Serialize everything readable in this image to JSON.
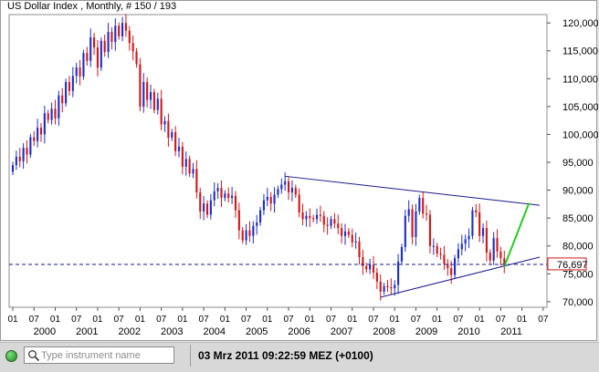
{
  "window": {
    "title": "US Dollar Index , Monthly, # 150 / 193"
  },
  "status_bar": {
    "search_placeholder": "Type instrument name",
    "datetime": "03 Mrz 2011 09:22:59  MEZ (+0100)",
    "connection_color": "#2fae2f"
  },
  "colors": {
    "up_candle": "#1c2fc8",
    "down_candle": "#d01818",
    "trendline": "#1a1a8a",
    "projection": "#22cc22",
    "price_box_border": "#d01818"
  },
  "chart_data": {
    "type": "candlestick",
    "title": "US Dollar Index , Monthly, # 150 / 193",
    "frequency": "monthly",
    "y_axis_side": "right",
    "ylim": [
      69,
      121.5
    ],
    "y_ticks": [
      {
        "value": 120,
        "label": "120,000"
      },
      {
        "value": 115,
        "label": "115,000"
      },
      {
        "value": 110,
        "label": "110,000"
      },
      {
        "value": 105,
        "label": "105,000"
      },
      {
        "value": 100,
        "label": "100,000"
      },
      {
        "value": 95,
        "label": "95,000"
      },
      {
        "value": 90,
        "label": "90,000"
      },
      {
        "value": 85,
        "label": "85,000"
      },
      {
        "value": 80,
        "label": "80,000"
      },
      {
        "value": 75,
        "label": "75,000"
      },
      {
        "value": 70,
        "label": "70,000"
      }
    ],
    "x_month_ticks": [
      "01",
      "07",
      "01",
      "07",
      "01",
      "07",
      "01",
      "07",
      "01",
      "07",
      "01",
      "07",
      "01",
      "07",
      "01",
      "07",
      "01",
      "07",
      "01",
      "07",
      "01",
      "07",
      "01",
      "07",
      "01",
      "07"
    ],
    "x_year_labels": [
      "2000",
      "2001",
      "2002",
      "2003",
      "2004",
      "2005",
      "2006",
      "2007",
      "2008",
      "2009",
      "2010",
      "2011"
    ],
    "x_range": [
      "1999-07",
      "2011-12"
    ],
    "last_price": {
      "value": 76.697,
      "label": "76,697"
    },
    "closes": [
      [
        "1999-07",
        94.5
      ],
      [
        "1999-08",
        96.0
      ],
      [
        "1999-09",
        95.2
      ],
      [
        "1999-10",
        97.6
      ],
      [
        "1999-11",
        96.4
      ],
      [
        "1999-12",
        99.5
      ],
      [
        "2000-01",
        98.8
      ],
      [
        "2000-02",
        101.2
      ],
      [
        "2000-03",
        100.0
      ],
      [
        "2000-04",
        103.8
      ],
      [
        "2000-05",
        102.6
      ],
      [
        "2000-06",
        104.6
      ],
      [
        "2000-07",
        102.9
      ],
      [
        "2000-08",
        107.0
      ],
      [
        "2000-09",
        105.6
      ],
      [
        "2000-10",
        109.4
      ],
      [
        "2000-11",
        107.8
      ],
      [
        "2000-12",
        110.5
      ],
      [
        "2001-01",
        112.0
      ],
      [
        "2001-02",
        110.4
      ],
      [
        "2001-03",
        114.6
      ],
      [
        "2001-04",
        113.2
      ],
      [
        "2001-05",
        117.4
      ],
      [
        "2001-06",
        115.6
      ],
      [
        "2001-07",
        112.0
      ],
      [
        "2001-08",
        116.8
      ],
      [
        "2001-09",
        114.8
      ],
      [
        "2001-10",
        118.4
      ],
      [
        "2001-11",
        116.6
      ],
      [
        "2001-12",
        119.5
      ],
      [
        "2002-01",
        117.6
      ],
      [
        "2002-02",
        120.0
      ],
      [
        "2002-03",
        118.6
      ],
      [
        "2002-04",
        116.4
      ],
      [
        "2002-05",
        114.9
      ],
      [
        "2002-06",
        112.6
      ],
      [
        "2002-07",
        105.0
      ],
      [
        "2002-08",
        109.4
      ],
      [
        "2002-09",
        106.2
      ],
      [
        "2002-10",
        107.6
      ],
      [
        "2002-11",
        104.4
      ],
      [
        "2002-12",
        106.4
      ],
      [
        "2003-01",
        101.8
      ],
      [
        "2003-02",
        102.4
      ],
      [
        "2003-03",
        99.4
      ],
      [
        "2003-04",
        100.4
      ],
      [
        "2003-05",
        97.0
      ],
      [
        "2003-06",
        97.8
      ],
      [
        "2003-07",
        94.2
      ],
      [
        "2003-08",
        95.6
      ],
      [
        "2003-09",
        93.0
      ],
      [
        "2003-10",
        93.8
      ],
      [
        "2003-11",
        89.6
      ],
      [
        "2003-12",
        86.2
      ],
      [
        "2004-01",
        87.6
      ],
      [
        "2004-02",
        85.6
      ],
      [
        "2004-03",
        88.2
      ],
      [
        "2004-04",
        89.8
      ],
      [
        "2004-05",
        90.4
      ],
      [
        "2004-06",
        88.6
      ],
      [
        "2004-07",
        89.4
      ],
      [
        "2004-08",
        88.6
      ],
      [
        "2004-09",
        89.0
      ],
      [
        "2004-10",
        86.4
      ],
      [
        "2004-11",
        82.8
      ],
      [
        "2004-12",
        81.0
      ],
      [
        "2005-01",
        82.8
      ],
      [
        "2005-02",
        81.8
      ],
      [
        "2005-03",
        83.6
      ],
      [
        "2005-04",
        84.2
      ],
      [
        "2005-05",
        86.4
      ],
      [
        "2005-06",
        88.2
      ],
      [
        "2005-07",
        88.8
      ],
      [
        "2005-08",
        87.6
      ],
      [
        "2005-09",
        89.2
      ],
      [
        "2005-10",
        90.2
      ],
      [
        "2005-11",
        91.0
      ],
      [
        "2005-12",
        91.6
      ],
      [
        "2006-01",
        89.6
      ],
      [
        "2006-02",
        90.4
      ],
      [
        "2006-03",
        89.2
      ],
      [
        "2006-04",
        86.0
      ],
      [
        "2006-05",
        84.8
      ],
      [
        "2006-06",
        85.4
      ],
      [
        "2006-07",
        85.0
      ],
      [
        "2006-08",
        84.8
      ],
      [
        "2006-09",
        85.6
      ],
      [
        "2006-10",
        85.4
      ],
      [
        "2006-11",
        83.8
      ],
      [
        "2006-12",
        83.6
      ],
      [
        "2007-01",
        84.8
      ],
      [
        "2007-02",
        84.0
      ],
      [
        "2007-03",
        83.2
      ],
      [
        "2007-04",
        81.8
      ],
      [
        "2007-05",
        82.6
      ],
      [
        "2007-06",
        82.0
      ],
      [
        "2007-07",
        80.6
      ],
      [
        "2007-08",
        80.8
      ],
      [
        "2007-09",
        78.0
      ],
      [
        "2007-10",
        76.4
      ],
      [
        "2007-11",
        75.8
      ],
      [
        "2007-12",
        76.6
      ],
      [
        "2008-01",
        75.2
      ],
      [
        "2008-02",
        73.6
      ],
      [
        "2008-03",
        71.8
      ],
      [
        "2008-04",
        72.8
      ],
      [
        "2008-05",
        72.6
      ],
      [
        "2008-06",
        72.4
      ],
      [
        "2008-07",
        73.0
      ],
      [
        "2008-08",
        77.2
      ],
      [
        "2008-09",
        79.8
      ],
      [
        "2008-10",
        85.4
      ],
      [
        "2008-11",
        86.6
      ],
      [
        "2008-12",
        81.6
      ],
      [
        "2009-01",
        86.2
      ],
      [
        "2009-02",
        88.6
      ],
      [
        "2009-03",
        85.8
      ],
      [
        "2009-04",
        85.6
      ],
      [
        "2009-05",
        80.0
      ],
      [
        "2009-06",
        80.0
      ],
      [
        "2009-07",
        78.6
      ],
      [
        "2009-08",
        78.4
      ],
      [
        "2009-09",
        76.8
      ],
      [
        "2009-10",
        76.0
      ],
      [
        "2009-11",
        74.8
      ],
      [
        "2009-12",
        77.8
      ],
      [
        "2010-01",
        79.4
      ],
      [
        "2010-02",
        80.4
      ],
      [
        "2010-03",
        81.2
      ],
      [
        "2010-04",
        81.8
      ],
      [
        "2010-05",
        86.4
      ],
      [
        "2010-06",
        86.0
      ],
      [
        "2010-07",
        81.8
      ],
      [
        "2010-08",
        83.2
      ],
      [
        "2010-09",
        78.8
      ],
      [
        "2010-10",
        77.4
      ],
      [
        "2010-11",
        81.4
      ],
      [
        "2010-12",
        79.0
      ],
      [
        "2011-01",
        77.8
      ],
      [
        "2011-02",
        76.7
      ]
    ],
    "annotations": [
      {
        "type": "trendline",
        "name": "upper-resistance",
        "from": [
          "2005-12",
          92.5
        ],
        "to": [
          "2011-12",
          87.3
        ]
      },
      {
        "type": "trendline",
        "name": "lower-support",
        "from": [
          "2008-03",
          70.8
        ],
        "to": [
          "2011-12",
          78.0
        ]
      },
      {
        "type": "projection",
        "name": "green-projection",
        "from": [
          "2011-02",
          76.3
        ],
        "to": [
          "2011-09",
          87.7
        ]
      },
      {
        "type": "hline",
        "name": "last-price-line",
        "value": 76.697,
        "style": "dashed"
      }
    ]
  }
}
